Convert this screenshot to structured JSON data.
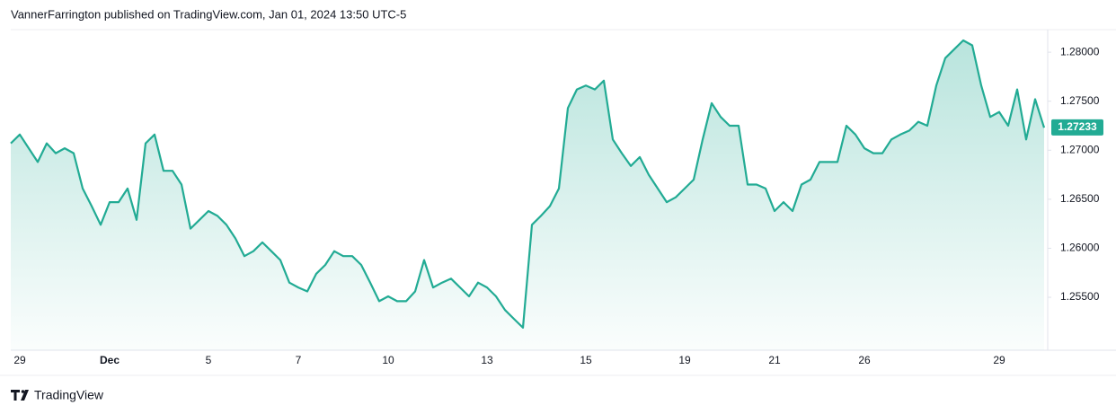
{
  "chart_data": {
    "type": "area",
    "subtitle": "VannerFarrington published on TradingView.com, Jan 01, 2024 13:50 UTC-5",
    "brand": "TradingView",
    "color": "#22ab94",
    "categories": [
      null,
      "29",
      null,
      null,
      null,
      null,
      null,
      null,
      null,
      null,
      null,
      "Dec",
      null,
      null,
      null,
      null,
      null,
      null,
      null,
      null,
      null,
      null,
      "5",
      null,
      null,
      null,
      null,
      null,
      null,
      null,
      null,
      null,
      "7",
      null,
      null,
      null,
      null,
      null,
      null,
      null,
      null,
      null,
      "10",
      null,
      null,
      null,
      null,
      null,
      null,
      null,
      null,
      null,
      null,
      "13",
      null,
      null,
      null,
      null,
      null,
      null,
      null,
      null,
      null,
      null,
      "15",
      null,
      null,
      null,
      null,
      null,
      null,
      null,
      null,
      null,
      null,
      "19",
      null,
      null,
      null,
      null,
      null,
      null,
      null,
      null,
      null,
      "21",
      null,
      null,
      null,
      null,
      null,
      null,
      null,
      null,
      null,
      "26",
      null,
      null,
      null,
      null,
      null,
      null,
      null,
      null,
      null,
      null,
      null,
      null,
      null,
      null,
      "29",
      null,
      null,
      null,
      null,
      null
    ],
    "values": [
      1.2707,
      1.2716,
      1.2702,
      1.2688,
      1.2707,
      1.2697,
      1.2702,
      1.2697,
      1.2661,
      1.2643,
      1.2624,
      1.2647,
      1.2647,
      1.2661,
      1.2629,
      1.2707,
      1.2716,
      1.2679,
      1.2679,
      1.2665,
      1.262,
      1.2629,
      1.2638,
      1.2633,
      1.2624,
      1.261,
      1.2592,
      1.2597,
      1.2606,
      1.2597,
      1.2588,
      1.2565,
      1.256,
      1.2556,
      1.2574,
      1.2583,
      1.2597,
      1.2592,
      1.2592,
      1.2583,
      1.2565,
      1.2546,
      1.2551,
      1.2546,
      1.2546,
      1.2556,
      1.2588,
      1.256,
      1.2565,
      1.2569,
      1.256,
      1.2551,
      1.2565,
      1.256,
      1.2551,
      1.2537,
      1.2528,
      1.2519,
      1.2624,
      1.2633,
      1.2643,
      1.2661,
      1.2743,
      1.2762,
      1.2766,
      1.2762,
      1.2771,
      1.2711,
      1.2697,
      1.2684,
      1.2693,
      1.2675,
      1.2661,
      1.2647,
      1.2652,
      1.2661,
      1.267,
      1.2711,
      1.2748,
      1.2734,
      1.2725,
      1.2725,
      1.2665,
      1.2665,
      1.2661,
      1.2638,
      1.2647,
      1.2638,
      1.2665,
      1.267,
      1.2688,
      1.2688,
      1.2688,
      1.2725,
      1.2716,
      1.2702,
      1.2697,
      1.2697,
      1.2711,
      1.2716,
      1.272,
      1.2729,
      1.2725,
      1.2766,
      1.2794,
      1.2803,
      1.2812,
      1.2807,
      1.2766,
      1.2734,
      1.2739,
      1.2725,
      1.2762,
      1.2711,
      1.2752,
      1.2723
    ],
    "last_value": 1.27233,
    "ylim": [
      1.2496,
      1.2823
    ],
    "yticks": [
      {
        "value": 1.255,
        "label": "1.25500"
      },
      {
        "value": 1.26,
        "label": "1.26000"
      },
      {
        "value": 1.265,
        "label": "1.26500"
      },
      {
        "value": 1.27,
        "label": "1.27000"
      },
      {
        "value": 1.275,
        "label": "1.27500"
      },
      {
        "value": 1.28,
        "label": "1.28000"
      }
    ]
  }
}
